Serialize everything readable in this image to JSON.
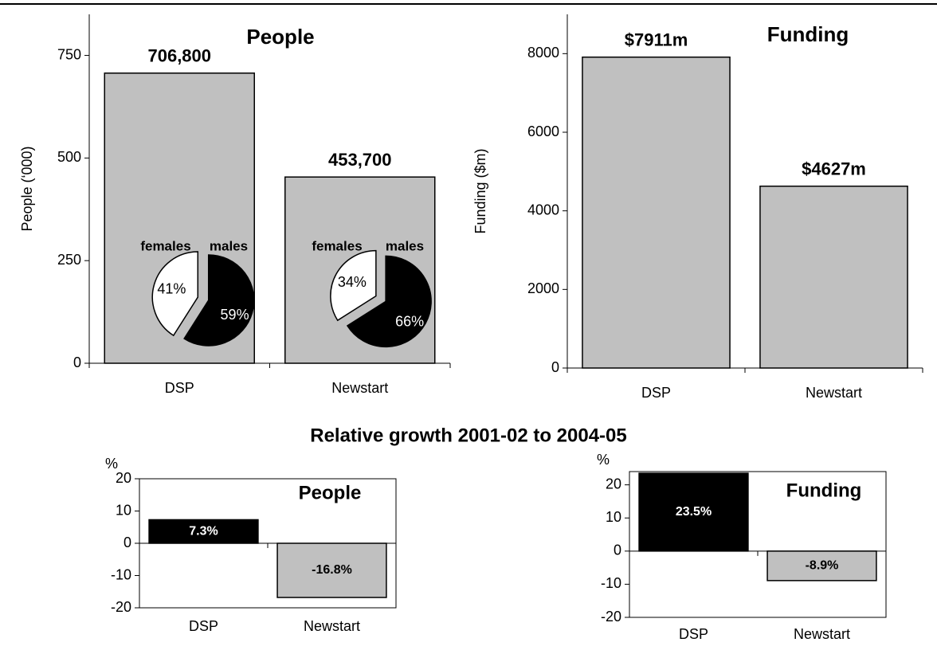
{
  "heading": "Relative growth 2001-02 to 2004-05",
  "chart_data": [
    {
      "type": "bar",
      "title": "People",
      "ylabel": "People (‘000)",
      "categories": [
        "DSP",
        "Newstart"
      ],
      "values": [
        706.8,
        453.7
      ],
      "value_labels": [
        "706,800",
        "453,700"
      ],
      "color": "#c0c0c0",
      "ylim": [
        0,
        850
      ],
      "yticks": [
        0,
        250,
        500,
        750
      ]
    },
    {
      "type": "pie",
      "categories": [
        "females",
        "males"
      ],
      "values": [
        41,
        59
      ],
      "value_labels": [
        "41%",
        "59%"
      ],
      "colors": [
        "#ffffff",
        "#000000"
      ]
    },
    {
      "type": "pie",
      "categories": [
        "females",
        "males"
      ],
      "values": [
        34,
        66
      ],
      "value_labels": [
        "34%",
        "66%"
      ],
      "colors": [
        "#ffffff",
        "#000000"
      ]
    },
    {
      "type": "bar",
      "title": "Funding",
      "ylabel": "Funding ($m)",
      "categories": [
        "DSP",
        "Newstart"
      ],
      "values": [
        7911,
        4627
      ],
      "value_labels": [
        "$7911m",
        "$4627m"
      ],
      "color": "#c0c0c0",
      "ylim": [
        0,
        9000
      ],
      "yticks": [
        0,
        2000,
        4000,
        6000,
        8000
      ]
    },
    {
      "type": "bar",
      "title": "People",
      "ylabel": "%",
      "categories": [
        "DSP",
        "Newstart"
      ],
      "values": [
        7.3,
        -16.8
      ],
      "value_labels": [
        "7.3%",
        "-16.8%"
      ],
      "colors": [
        "#000000",
        "#c0c0c0"
      ],
      "ylim": [
        -20,
        20
      ],
      "yticks": [
        -20,
        -10,
        0,
        10,
        20
      ]
    },
    {
      "type": "bar",
      "title": "Funding",
      "ylabel": "%",
      "categories": [
        "DSP",
        "Newstart"
      ],
      "values": [
        23.5,
        -8.9
      ],
      "value_labels": [
        "23.5%",
        "-8.9%"
      ],
      "colors": [
        "#000000",
        "#c0c0c0"
      ],
      "ylim": [
        -20,
        24
      ],
      "yticks": [
        -20,
        -10,
        0,
        10,
        20
      ]
    }
  ]
}
